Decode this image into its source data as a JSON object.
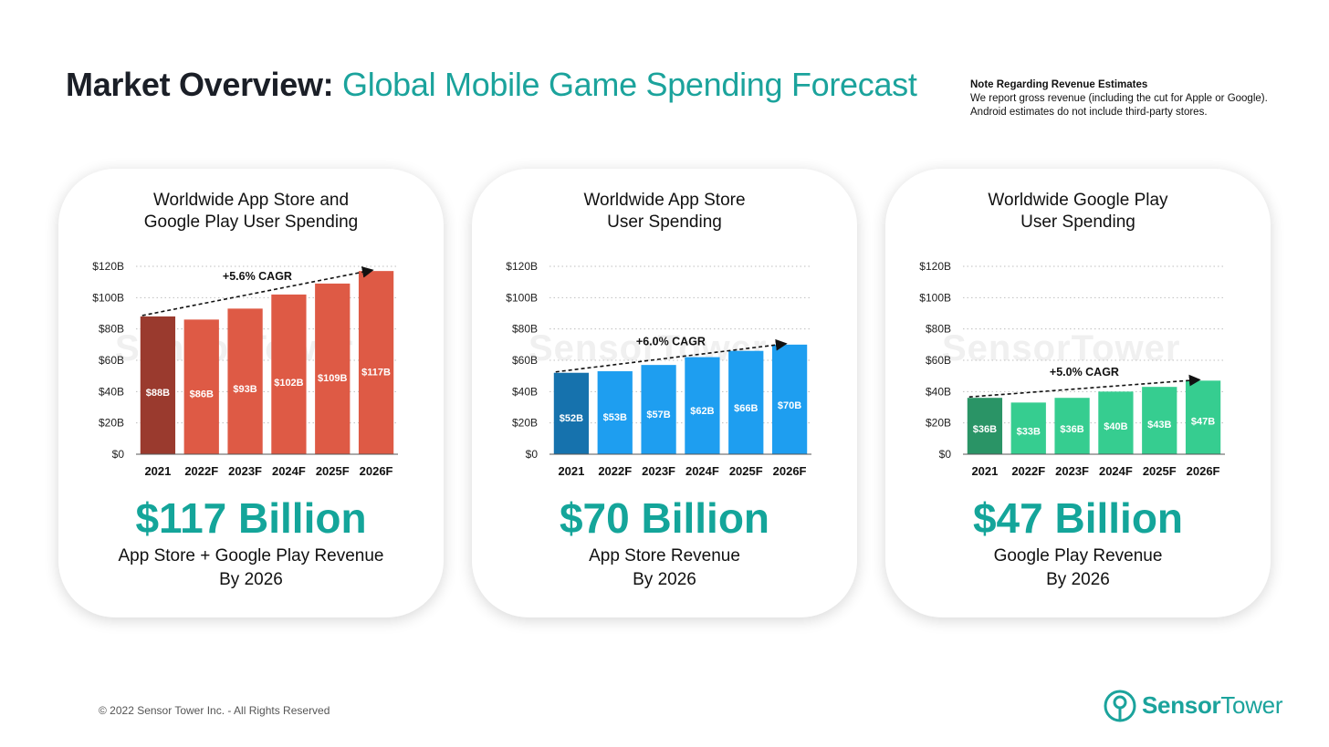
{
  "header": {
    "title_bold": "Market Overview:",
    "title_light": "Global Mobile Game Spending Forecast"
  },
  "note": {
    "heading": "Note Regarding Revenue Estimates",
    "line1": "We report gross revenue (including the cut for Apple or Google).",
    "line2": "Android estimates do not include third-party stores."
  },
  "watermark": {
    "text": "SensorTower"
  },
  "colors": {
    "accent": "#1ba39c",
    "big_number": "#14a59a"
  },
  "cards": [
    {
      "title_line1": "Worldwide App Store and",
      "title_line2": "Google Play User Spending",
      "big_number": "$117 Billion",
      "subtitle_line1": "App Store + Google Play Revenue",
      "subtitle_line2": "By 2026"
    },
    {
      "title_line1": "Worldwide App Store",
      "title_line2": "User Spending",
      "big_number": "$70 Billion",
      "subtitle_line1": "App Store Revenue",
      "subtitle_line2": "By 2026"
    },
    {
      "title_line1": "Worldwide Google Play",
      "title_line2": "User Spending",
      "big_number": "$47 Billion",
      "subtitle_line1": "Google Play Revenue",
      "subtitle_line2": "By 2026"
    }
  ],
  "chart_data": [
    {
      "type": "bar",
      "title": "Worldwide App Store and Google Play User Spending",
      "categories": [
        "2021",
        "2022F",
        "2023F",
        "2024F",
        "2025F",
        "2026F"
      ],
      "values": [
        88,
        86,
        93,
        102,
        109,
        117
      ],
      "value_labels": [
        "$88B",
        "$86B",
        "$93B",
        "$102B",
        "$109B",
        "$117B"
      ],
      "ylim": [
        0,
        120
      ],
      "yticks": [
        "$0",
        "$20B",
        "$40B",
        "$60B",
        "$80B",
        "$100B",
        "$120B"
      ],
      "grid": true,
      "annotation": "+5.6% CAGR",
      "base_color": "#9a3a2e",
      "bar_color": "#de5a45"
    },
    {
      "type": "bar",
      "title": "Worldwide App Store User Spending",
      "categories": [
        "2021",
        "2022F",
        "2023F",
        "2024F",
        "2025F",
        "2026F"
      ],
      "values": [
        52,
        53,
        57,
        62,
        66,
        70
      ],
      "value_labels": [
        "$52B",
        "$53B",
        "$57B",
        "$62B",
        "$66B",
        "$70B"
      ],
      "ylim": [
        0,
        120
      ],
      "yticks": [
        "$0",
        "$20B",
        "$40B",
        "$60B",
        "$80B",
        "$100B",
        "$120B"
      ],
      "grid": true,
      "annotation": "+6.0% CAGR",
      "base_color": "#1672ad",
      "bar_color": "#1e9ef0"
    },
    {
      "type": "bar",
      "title": "Worldwide Google Play User Spending",
      "categories": [
        "2021",
        "2022F",
        "2023F",
        "2024F",
        "2025F",
        "2026F"
      ],
      "values": [
        36,
        33,
        36,
        40,
        43,
        47
      ],
      "value_labels": [
        "$36B",
        "$33B",
        "$36B",
        "$40B",
        "$43B",
        "$47B"
      ],
      "ylim": [
        0,
        120
      ],
      "yticks": [
        "$0",
        "$20B",
        "$40B",
        "$60B",
        "$80B",
        "$100B",
        "$120B"
      ],
      "grid": true,
      "annotation": "+5.0% CAGR",
      "base_color": "#2a9466",
      "bar_color": "#36cd90"
    }
  ],
  "footer": {
    "copyright": "© 2022 Sensor Tower Inc. - All Rights Reserved"
  },
  "logo": {
    "icon": "sensor-tower-logo-icon",
    "text_bold": "Sensor",
    "text_light": "Tower"
  }
}
